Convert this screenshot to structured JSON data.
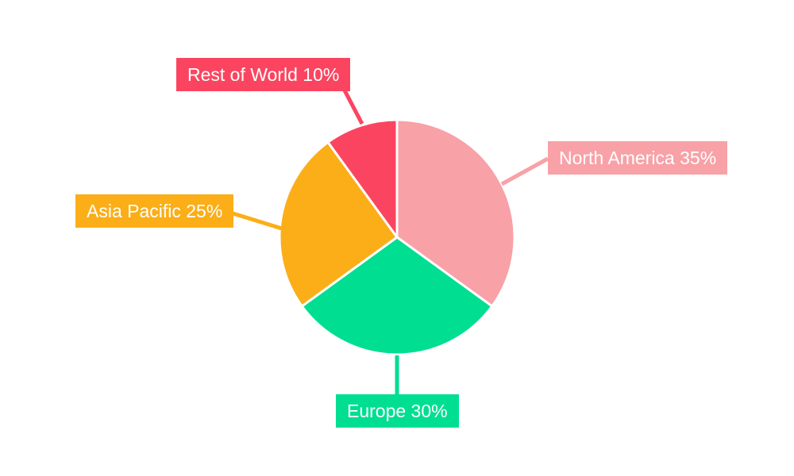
{
  "chart_data": {
    "type": "pie",
    "title": "",
    "background": "#FFFFFF",
    "label_text_color": "#FFFFFF",
    "start_angle_deg": 0,
    "direction": "clockwise",
    "categories": [
      "North America",
      "Europe",
      "Asia Pacific",
      "Rest of World"
    ],
    "values": [
      35,
      30,
      25,
      10
    ],
    "slices": [
      {
        "label": "North America",
        "value": 35,
        "color": "#F8A1A7",
        "display": "North America 35%"
      },
      {
        "label": "Europe",
        "value": 30,
        "color": "#00DE92",
        "display": "Europe 30%"
      },
      {
        "label": "Asia Pacific",
        "value": 25,
        "color": "#FBAE18",
        "display": "Asia Pacific 25%"
      },
      {
        "label": "Rest of World",
        "value": 10,
        "color": "#FB4560",
        "display": "Rest of World 10%"
      }
    ]
  }
}
